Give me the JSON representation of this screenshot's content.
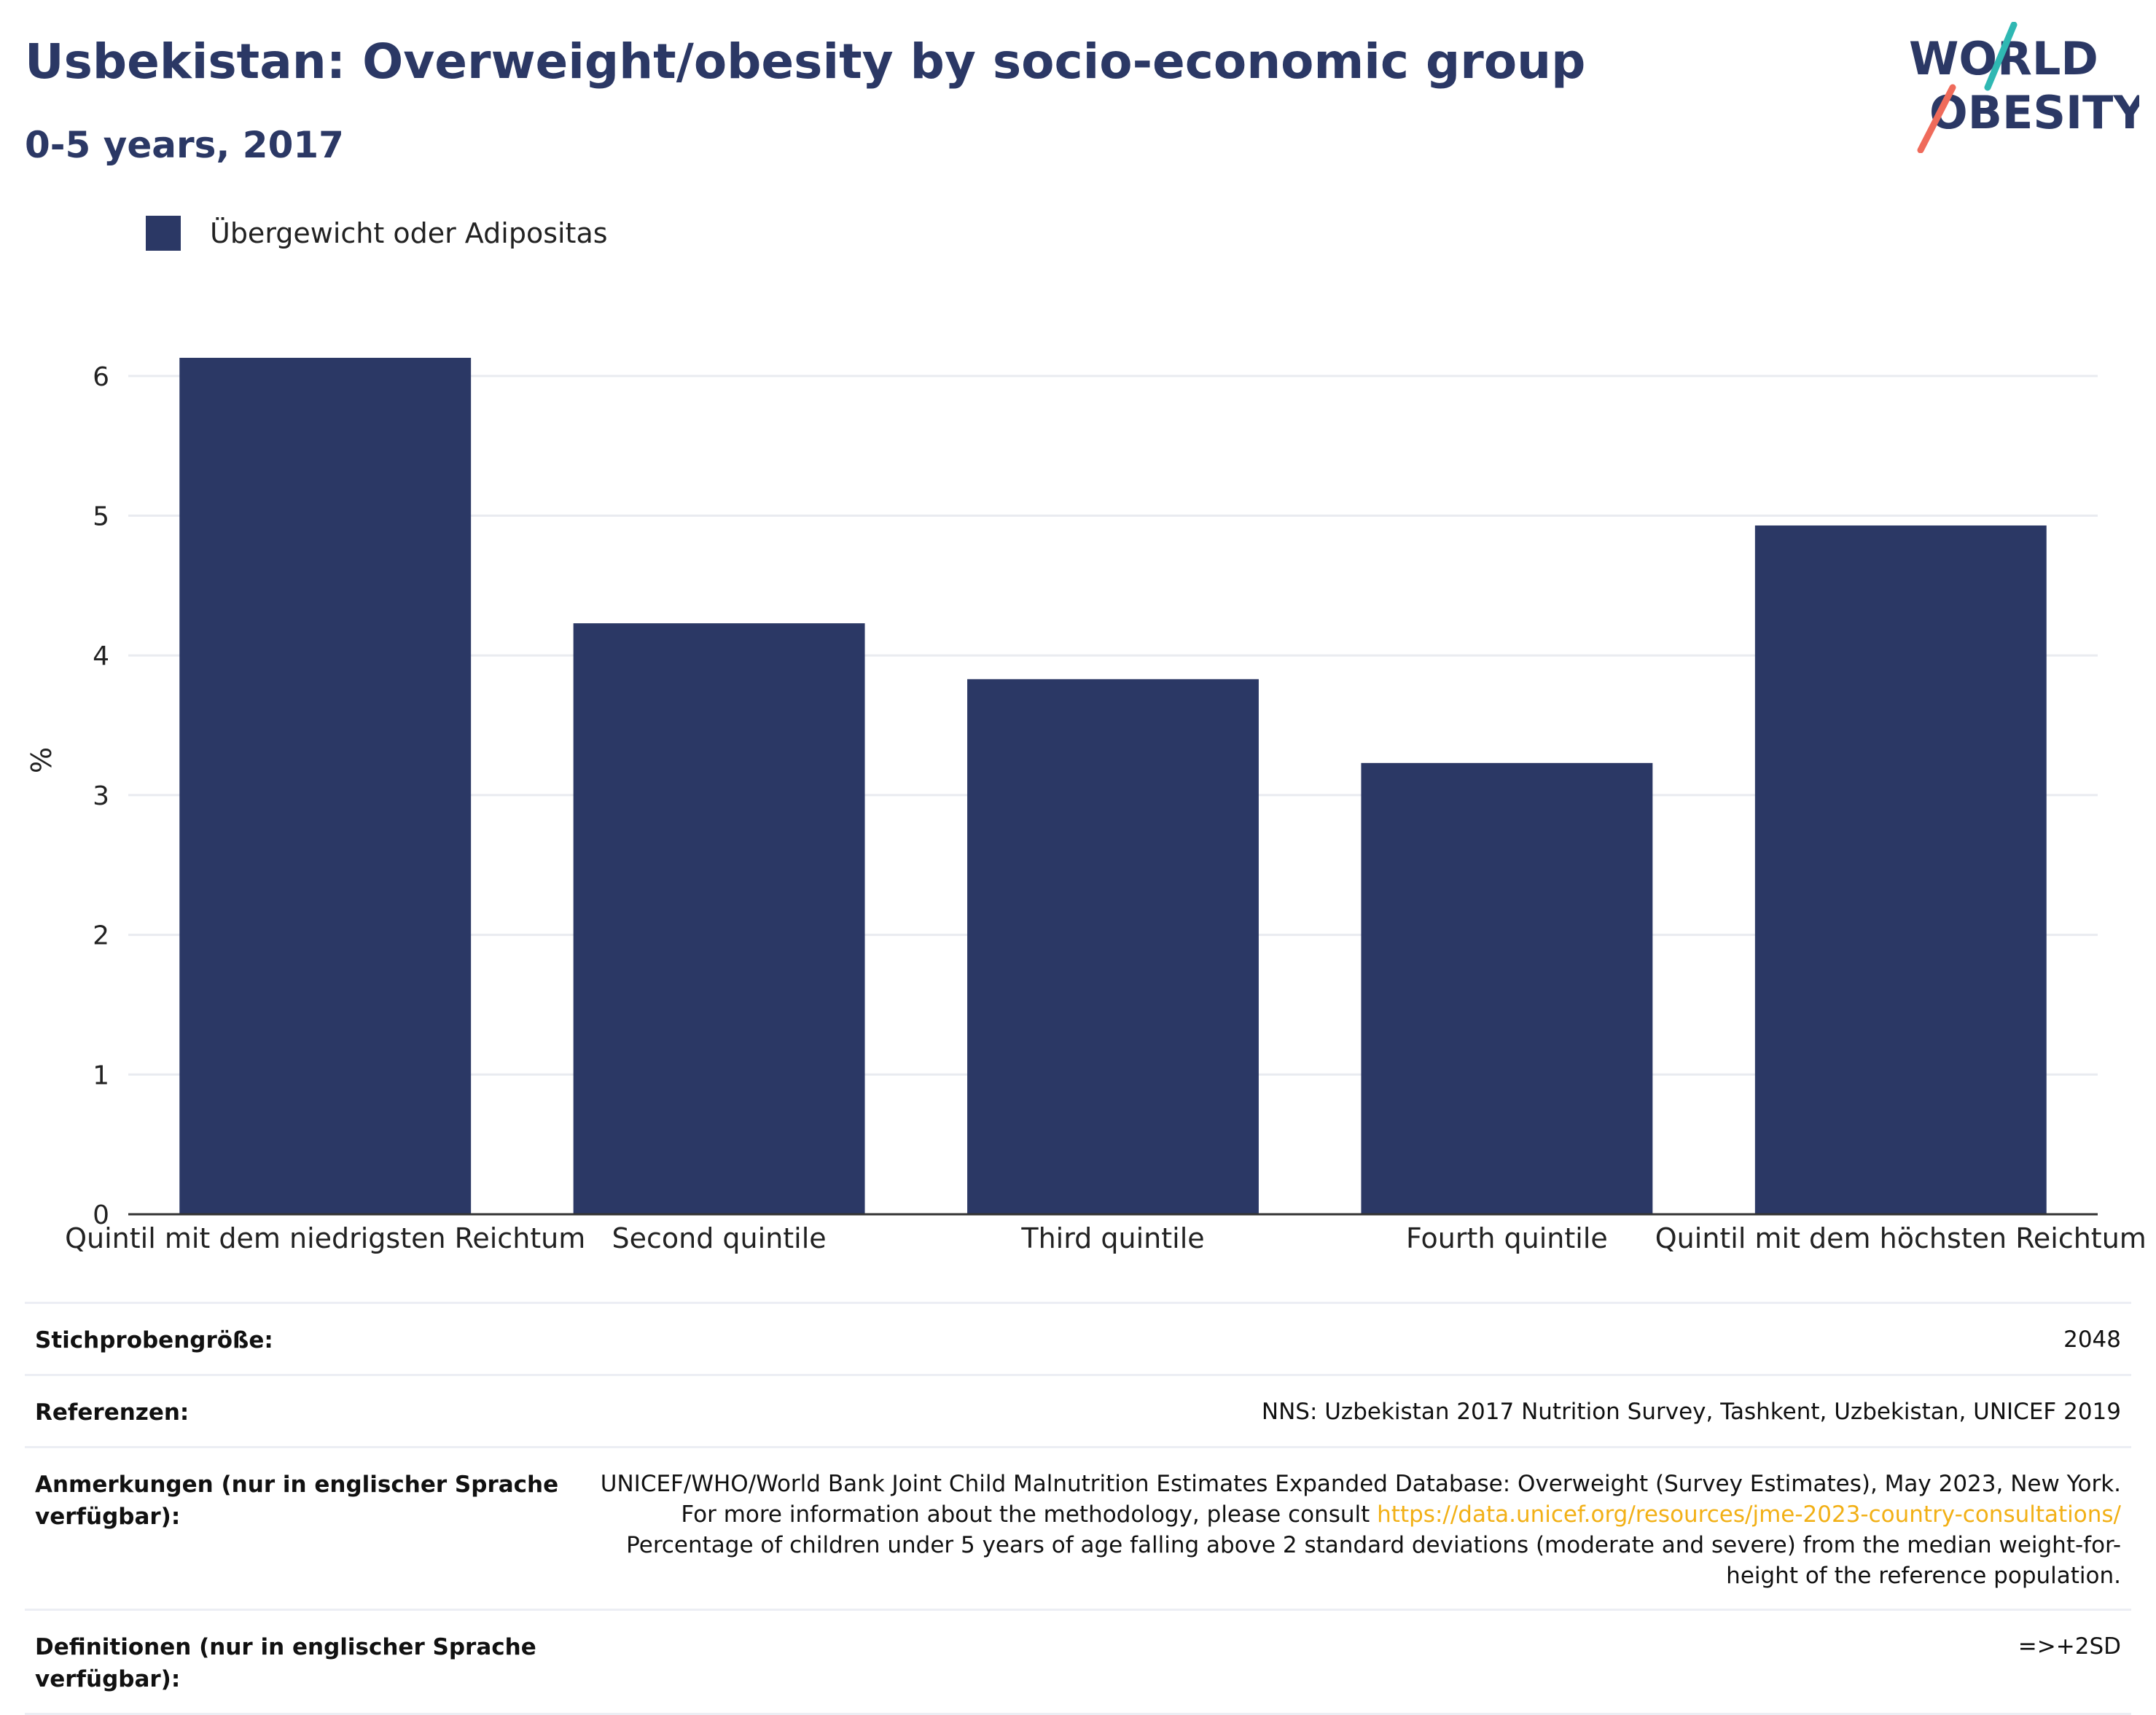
{
  "header": {
    "title": "Usbekistan: Overweight/obesity by socio-economic group",
    "subtitle": "0-5 years, 2017"
  },
  "logo": {
    "line1": "WORLD",
    "line2": "OBESITY"
  },
  "colors": {
    "bar": "#2b3865",
    "title": "#2b3865",
    "grid": "#e9ebf0",
    "axis": "#333333",
    "link": "#f2b016",
    "logo_teal": "#2fb8b3",
    "logo_coral": "#ef6b5b"
  },
  "legend": {
    "label": "Übergewicht oder Adipositas"
  },
  "chart_data": {
    "type": "bar",
    "categories": [
      "Quintil mit dem niedrigsten Reichtum",
      "Second quintile",
      "Third quintile",
      "Fourth quintile",
      "Quintil mit dem höchsten Reichtum"
    ],
    "series": [
      {
        "name": "Übergewicht oder Adipositas",
        "values": [
          6.13,
          4.23,
          3.83,
          3.23,
          4.93
        ]
      }
    ],
    "ylabel": "%",
    "xlabel": "",
    "ylim": [
      0,
      6.5
    ],
    "yticks": [
      0,
      1,
      2,
      3,
      4,
      5,
      6
    ],
    "grid": true,
    "legend_position": "top-left"
  },
  "meta": {
    "sample_size": {
      "label": "Stichprobengröße:",
      "value": "2048"
    },
    "references": {
      "label": "Referenzen:",
      "value": "NNS: Uzbekistan 2017 Nutrition Survey, Tashkent, Uzbekistan, UNICEF 2019"
    },
    "notes": {
      "label": "Anmerkungen (nur in englischer Sprache verfügbar):",
      "text_before": "UNICEF/WHO/World Bank Joint Child Malnutrition Estimates Expanded Database: Overweight (Survey Estimates), May 2023, New York. For more information about the methodology, please consult ",
      "link": "https://data.unicef.org/resources/jme-2023-country-consultations/",
      "text_after": " Percentage of children under 5 years of age falling above 2 standard deviations (moderate and severe) from the median weight-for-height of the reference population."
    },
    "definitions": {
      "label": "Definitionen (nur in englischer Sprache verfügbar):",
      "value": "=>+2SD"
    }
  }
}
